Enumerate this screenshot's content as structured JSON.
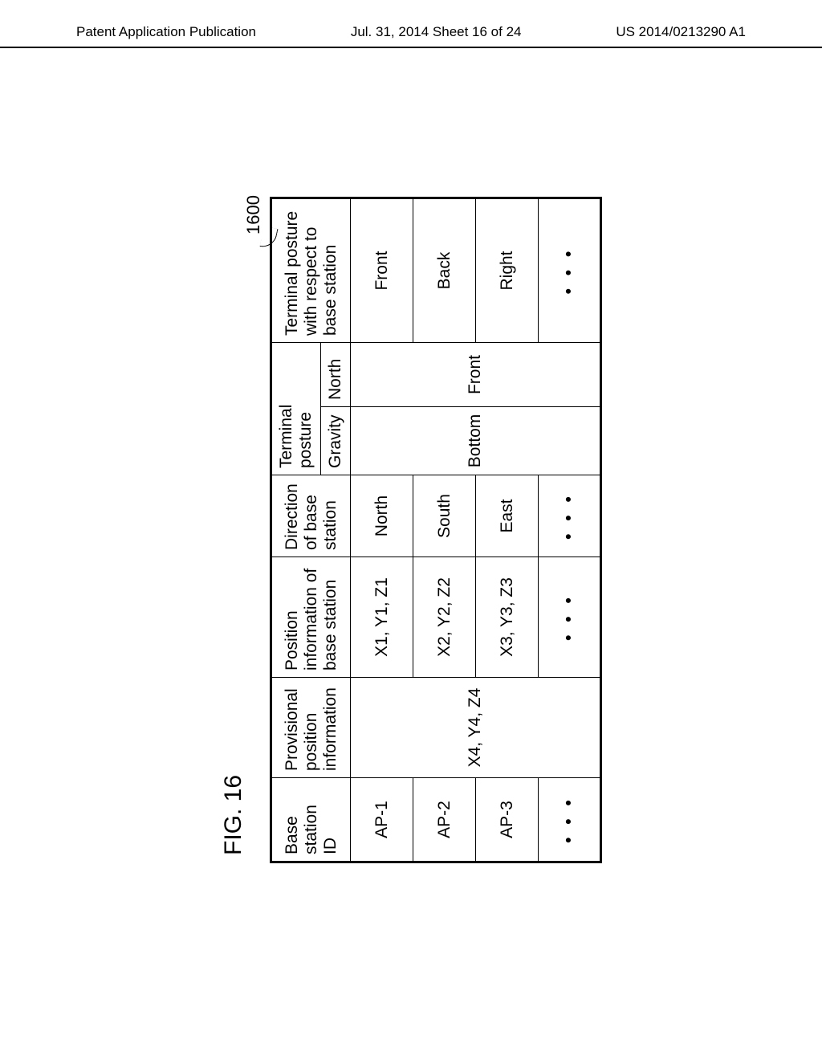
{
  "header": {
    "left": "Patent Application Publication",
    "center": "Jul. 31, 2014  Sheet 16 of 24",
    "right": "US 2014/0213290 A1"
  },
  "figure": {
    "label": "FIG. 16",
    "ref_number": "1600"
  },
  "table": {
    "headers": {
      "base_station_id": "Base station ID",
      "provisional": "Provisional position information",
      "position_info": "Position information of base station",
      "direction": "Direction of base station",
      "terminal_posture": "Terminal posture",
      "gravity": "Gravity",
      "north": "North",
      "terminal_posture_base": "Terminal posture with respect to base station"
    },
    "merged": {
      "provisional_value": "X4, Y4, Z4",
      "gravity_value": "Bottom",
      "north_value": "Front"
    },
    "rows": [
      {
        "id": "AP-1",
        "pos": "X1, Y1, Z1",
        "dir": "North",
        "term": "Front"
      },
      {
        "id": "AP-2",
        "pos": "X2, Y2, Z2",
        "dir": "South",
        "term": "Back"
      },
      {
        "id": "AP-3",
        "pos": "X3, Y3, Z3",
        "dir": "East",
        "term": "Right"
      }
    ],
    "ellipsis": "• • •"
  }
}
